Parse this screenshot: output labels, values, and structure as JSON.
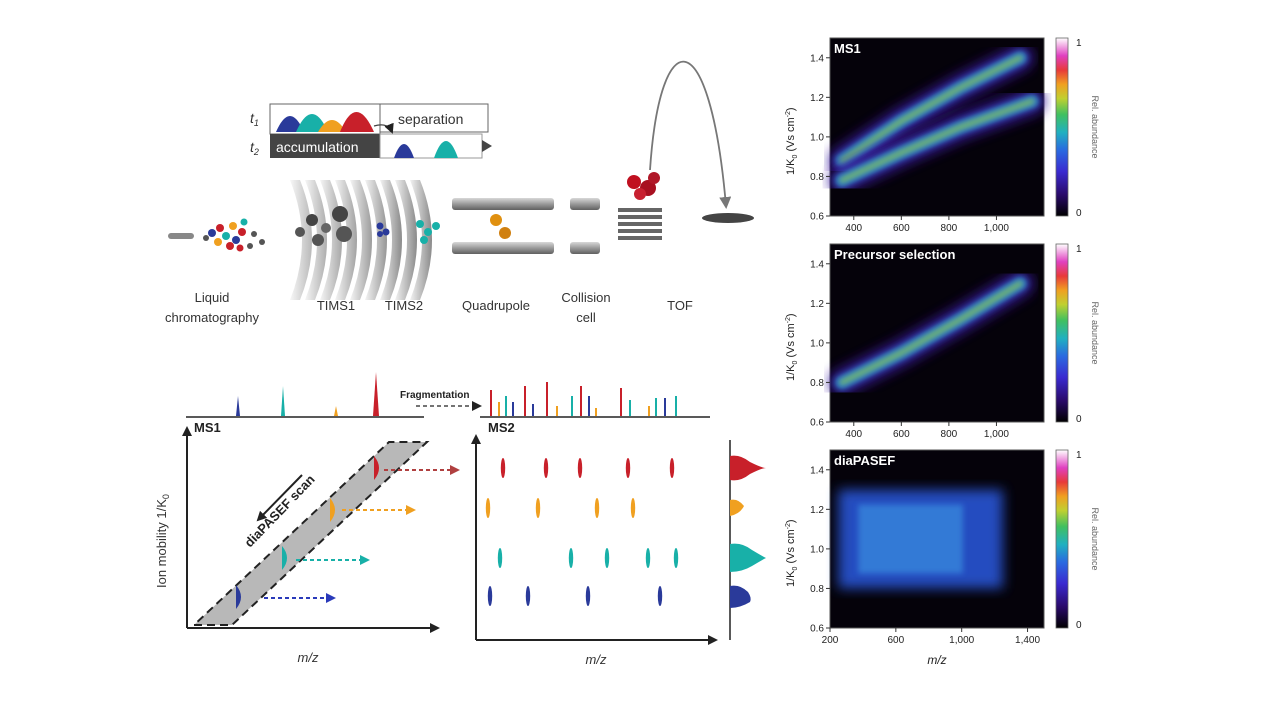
{
  "timing": {
    "t1": "t",
    "t1_sub": "1",
    "t2": "t",
    "t2_sub": "2",
    "separation": "separation",
    "accumulation": "accumulation"
  },
  "instrument": {
    "lc_line1": "Liquid",
    "lc_line2": "chromatography",
    "tims1": "TIMS1",
    "tims2": "TIMS2",
    "quadrupole": "Quadrupole",
    "collision_line1": "Collision",
    "collision_line2": "cell",
    "tof": "TOF"
  },
  "scheme": {
    "ms1_title": "MS1",
    "ms2_title": "MS2",
    "fragmentation": "Fragmentation",
    "scan_label": "diaPASEF scan",
    "ylabel": "Ion mobility 1/K",
    "ylabel_sub": "0",
    "xlabel_left": "m/z",
    "xlabel_right": "m/z",
    "colors": {
      "red": "#c8202a",
      "orange": "#f0a020",
      "teal": "#18b0a8",
      "blue": "#2a3a9a"
    }
  },
  "heatmaps": {
    "ylabel": "1/K",
    "ylabel_sub": "0",
    "ylabel_unit": " (Vs cm",
    "ylabel_exp": "-2",
    "ylabel_close": ")",
    "colorbar_label": "Rel. abundance",
    "colorbar_max": "1",
    "colorbar_min": "0",
    "colormap": [
      "#000000",
      "#2a0a6a",
      "#3a2ad0",
      "#2a6ae0",
      "#20b0c0",
      "#40c060",
      "#c0d030",
      "#f0a020",
      "#e83a3a",
      "#e040c0",
      "#f8d0f8",
      "#ffffff"
    ],
    "xlabel": "m/z"
  },
  "chart_data": [
    {
      "type": "heatmap",
      "title": "MS1",
      "xlim": [
        300,
        1200
      ],
      "ylim": [
        0.6,
        1.5
      ],
      "x_ticks": [
        "400",
        "600",
        "800",
        "1,000"
      ],
      "y_ticks": [
        "0.6",
        "0.8",
        "1.0",
        "1.2",
        "1.4"
      ],
      "bands": [
        {
          "x": [
            350,
            600,
            850,
            1100
          ],
          "y": [
            0.88,
            1.08,
            1.25,
            1.4
          ]
        },
        {
          "x": [
            350,
            600,
            850,
            1150
          ],
          "y": [
            0.78,
            0.92,
            1.05,
            1.18
          ]
        }
      ]
    },
    {
      "type": "heatmap",
      "title": "Precursor selection",
      "xlim": [
        300,
        1200
      ],
      "ylim": [
        0.6,
        1.5
      ],
      "x_ticks": [
        "400",
        "600",
        "800",
        "1,000"
      ],
      "y_ticks": [
        "0.6",
        "0.8",
        "1.0",
        "1.2",
        "1.4"
      ],
      "bands": [
        {
          "x": [
            350,
            600,
            850,
            1100
          ],
          "y": [
            0.8,
            0.95,
            1.12,
            1.3
          ]
        }
      ]
    },
    {
      "type": "heatmap",
      "title": "diaPASEF",
      "xlim": [
        200,
        1500
      ],
      "ylim": [
        0.6,
        1.5
      ],
      "x_ticks": [
        "200",
        "600",
        "1,000",
        "1,400"
      ],
      "y_ticks": [
        "0.6",
        "0.8",
        "1.0",
        "1.2",
        "1.4"
      ],
      "region": {
        "x": [
          250,
          1250
        ],
        "y": [
          0.8,
          1.3
        ]
      }
    }
  ]
}
